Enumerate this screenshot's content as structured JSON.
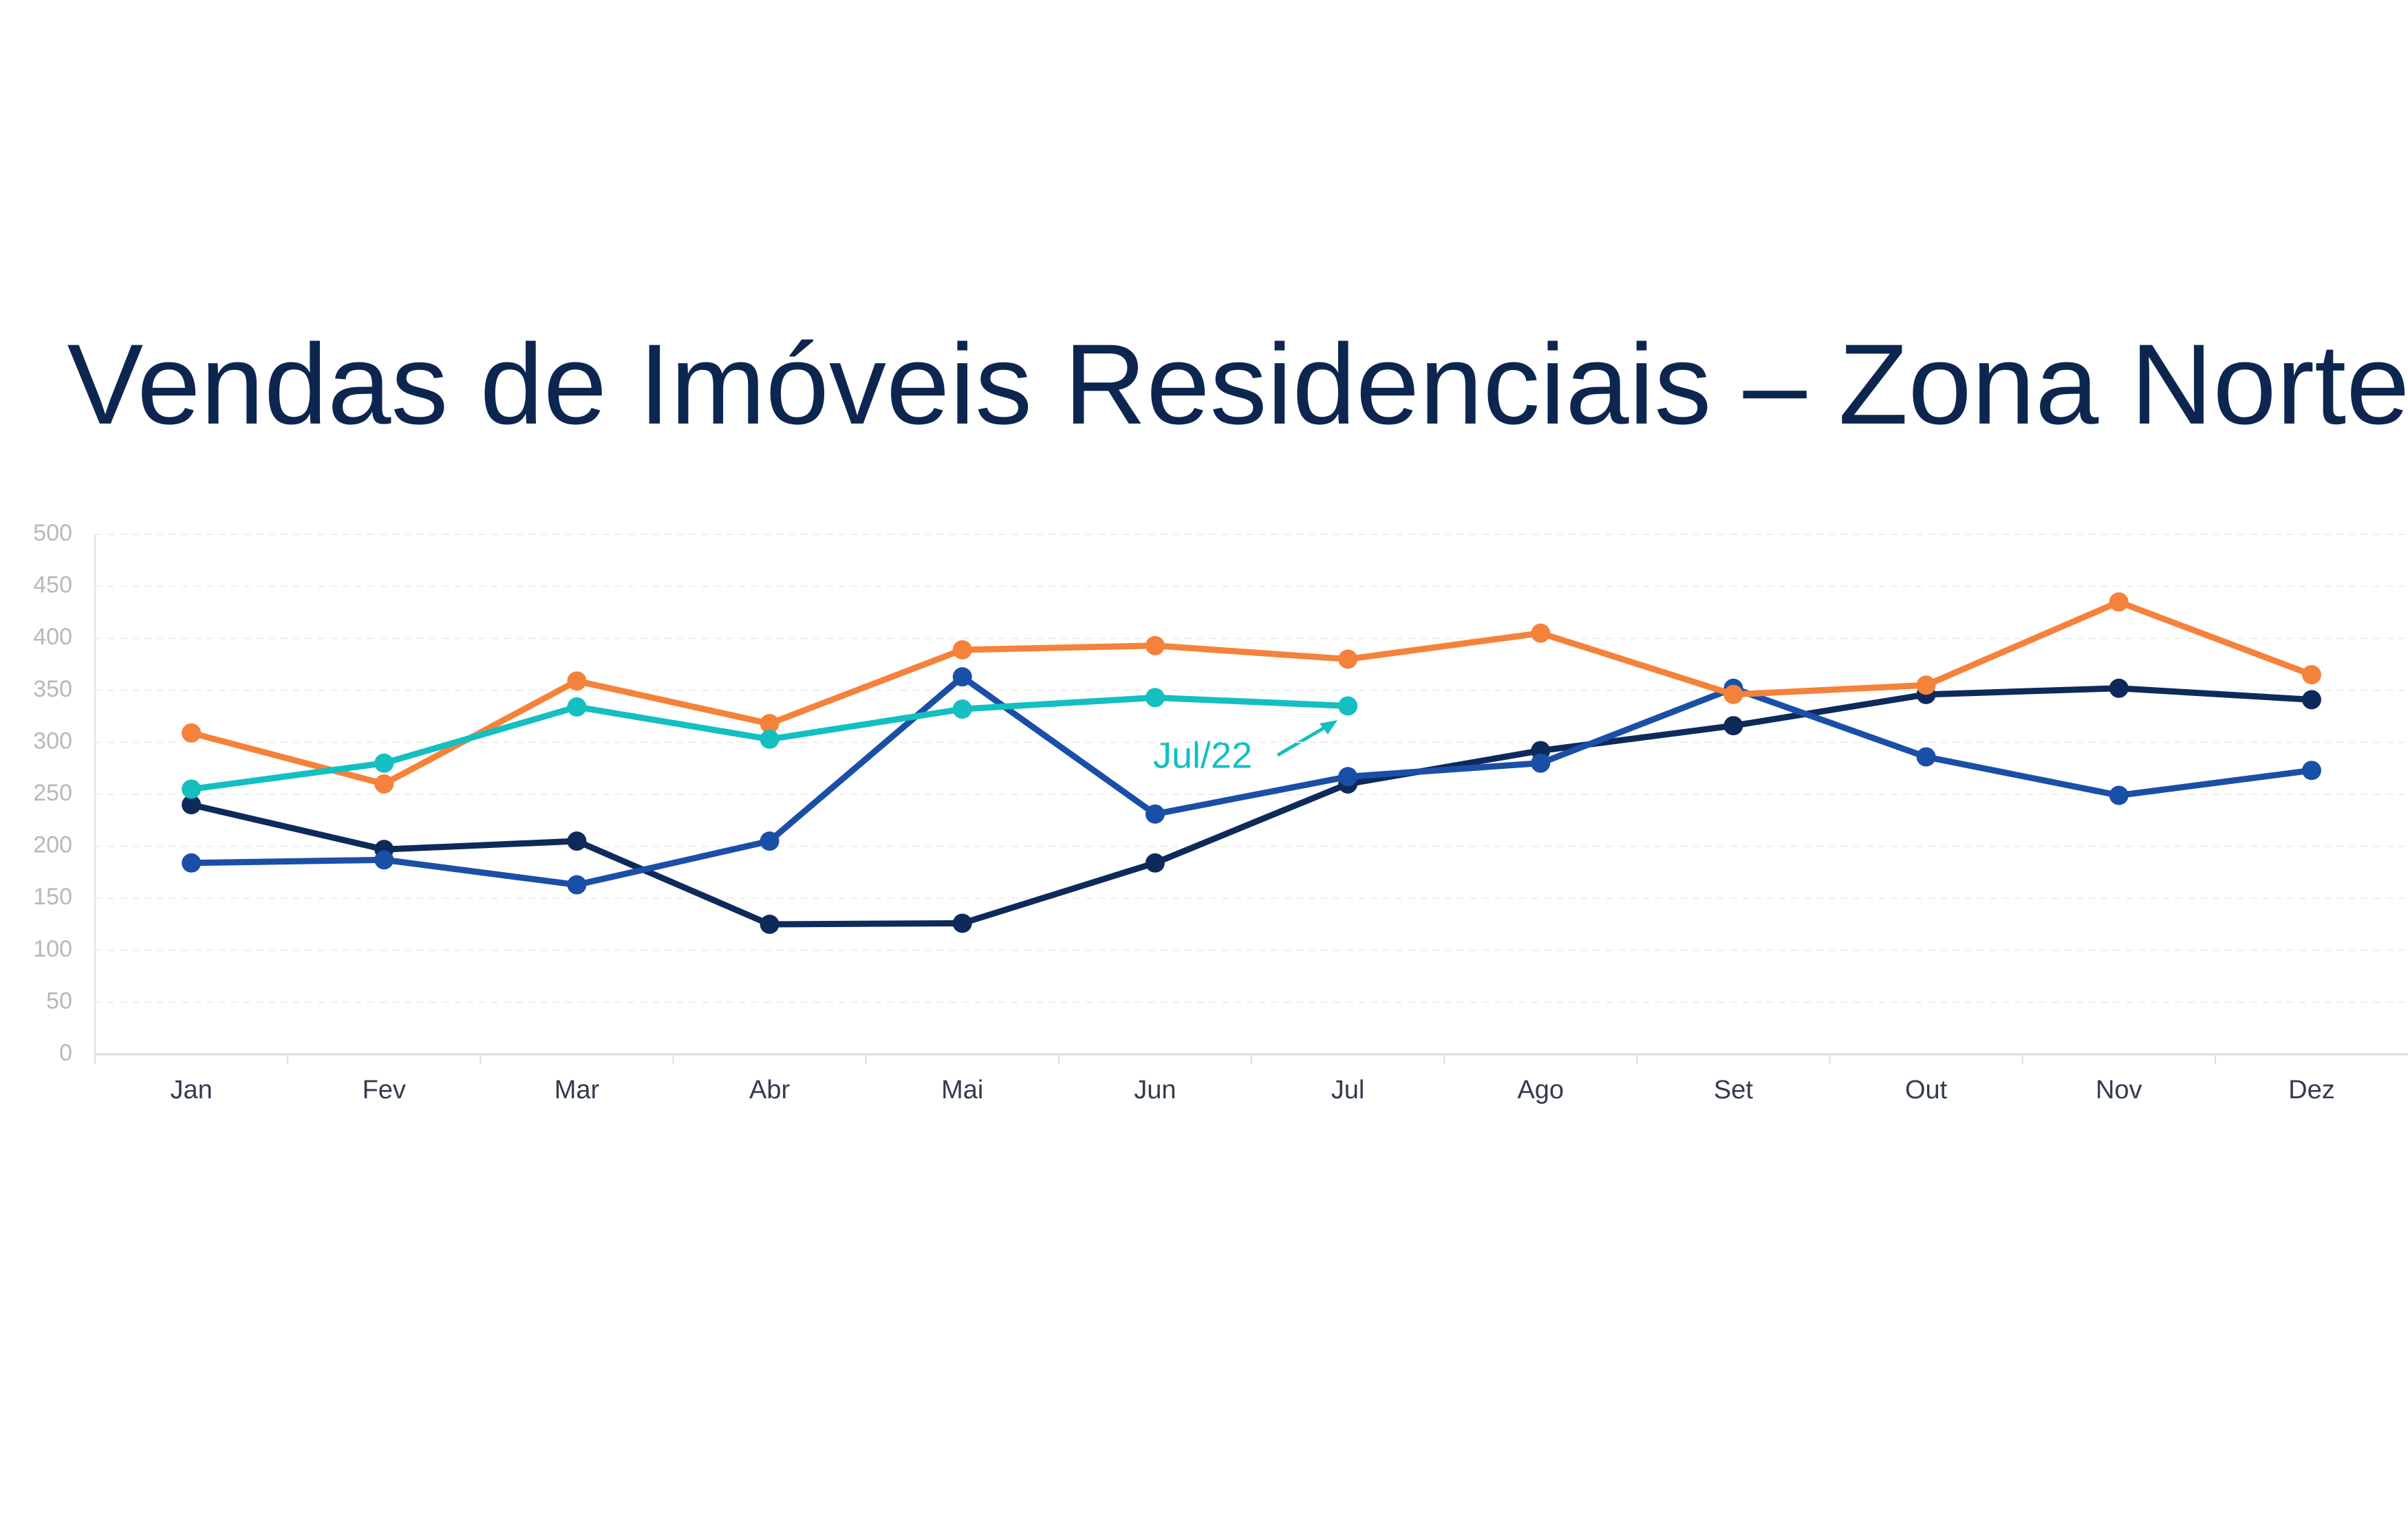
{
  "chart_data": {
    "type": "line",
    "title": "Vendas de Imóveis Residenciais – Zona Norte",
    "categories": [
      "Jan",
      "Fev",
      "Mar",
      "Abr",
      "Mai",
      "Jun",
      "Jul",
      "Ago",
      "Set",
      "Out",
      "Nov",
      "Dez"
    ],
    "series": [
      {
        "color": "#0d2a5a",
        "values": [
          240,
          197,
          205,
          125,
          126,
          184,
          260,
          292,
          316,
          346,
          352,
          341
        ]
      },
      {
        "color": "#1a4fa8",
        "values": [
          184,
          187,
          163,
          205,
          363,
          231,
          267,
          280,
          352,
          286,
          249,
          273
        ]
      },
      {
        "color": "#f5823a",
        "values": [
          309,
          260,
          359,
          318,
          389,
          393,
          380,
          405,
          346,
          355,
          435,
          365
        ]
      },
      {
        "color": "#13bfc0",
        "values": [
          255,
          280,
          334,
          303,
          332,
          343,
          335,
          null,
          null,
          null,
          null,
          null
        ]
      }
    ],
    "annotation": "Jul/22",
    "ylim": [
      0,
      500
    ],
    "yticks": [
      0,
      50,
      100,
      150,
      200,
      250,
      300,
      350,
      400,
      450,
      500
    ],
    "grid": true
  }
}
